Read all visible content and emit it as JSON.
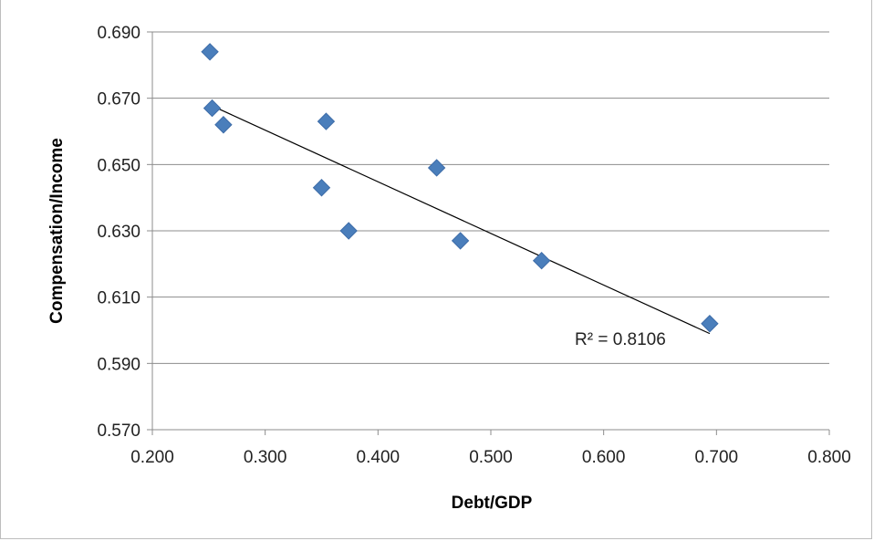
{
  "chart_data": {
    "type": "scatter",
    "title": "",
    "xlabel": "Debt/GDP",
    "ylabel": "Compensation/Income",
    "xlim": [
      0.2,
      0.8
    ],
    "ylim": [
      0.57,
      0.69
    ],
    "x_ticks": [
      "0.200",
      "0.300",
      "0.400",
      "0.500",
      "0.600",
      "0.700",
      "0.800"
    ],
    "y_ticks": [
      "0.570",
      "0.590",
      "0.610",
      "0.630",
      "0.650",
      "0.670",
      "0.690"
    ],
    "grid": "horizontal",
    "legend": "none",
    "marker": "diamond",
    "marker_color": "#4a7ebb",
    "points": [
      {
        "x": 0.251,
        "y": 0.684
      },
      {
        "x": 0.253,
        "y": 0.667
      },
      {
        "x": 0.263,
        "y": 0.662
      },
      {
        "x": 0.354,
        "y": 0.663
      },
      {
        "x": 0.35,
        "y": 0.643
      },
      {
        "x": 0.374,
        "y": 0.63
      },
      {
        "x": 0.452,
        "y": 0.649
      },
      {
        "x": 0.473,
        "y": 0.627
      },
      {
        "x": 0.545,
        "y": 0.621
      },
      {
        "x": 0.694,
        "y": 0.602
      }
    ],
    "trendline": {
      "type": "linear",
      "x_start": 0.251,
      "y_start": 0.668,
      "x_end": 0.694,
      "y_end": 0.599
    },
    "annotation": "R² = 0.8106"
  }
}
